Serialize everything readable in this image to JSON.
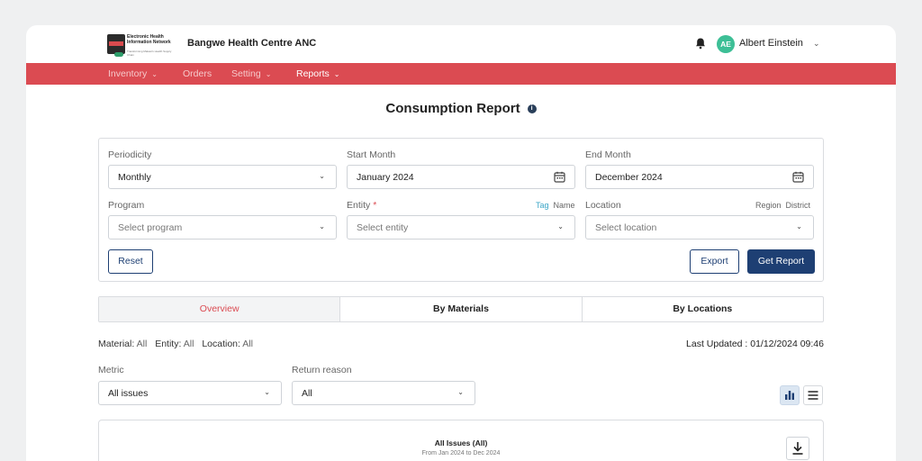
{
  "header": {
    "logo_text": "Electronic Health Information Network",
    "logo_tagline": "Transforming Malawi's Health Supply Chain",
    "facility_name": "Bangwe Health Centre ANC",
    "user_initials": "AE",
    "user_name": "Albert Einstein"
  },
  "nav": {
    "items": [
      {
        "label": "Inventory",
        "has_menu": true
      },
      {
        "label": "Orders",
        "has_menu": false
      },
      {
        "label": "Setting",
        "has_menu": true
      },
      {
        "label": "Reports",
        "has_menu": true,
        "active": true
      }
    ]
  },
  "page": {
    "title": "Consumption Report"
  },
  "filters": {
    "periodicity": {
      "label": "Periodicity",
      "value": "Monthly"
    },
    "start_month": {
      "label": "Start Month",
      "value": "January 2024"
    },
    "end_month": {
      "label": "End Month",
      "value": "December 2024"
    },
    "program": {
      "label": "Program",
      "placeholder": "Select program"
    },
    "entity": {
      "label": "Entity",
      "required_mark": "*",
      "placeholder": "Select entity",
      "toggle_tag": "Tag",
      "toggle_name": "Name"
    },
    "location": {
      "label": "Location",
      "placeholder": "Select location",
      "toggle_region": "Region",
      "toggle_district": "District"
    },
    "reset_label": "Reset",
    "export_label": "Export",
    "get_report_label": "Get Report"
  },
  "tabs": [
    {
      "label": "Overview",
      "active": true
    },
    {
      "label": "By Materials",
      "active": false
    },
    {
      "label": "By Locations",
      "active": false
    }
  ],
  "summary": {
    "material_label": "Material:",
    "material_value": "All",
    "entity_label": "Entity:",
    "entity_value": "All",
    "location_label": "Location:",
    "location_value": "All",
    "last_updated": "Last Updated : 01/12/2024 09:46"
  },
  "controls": {
    "metric": {
      "label": "Metric",
      "value": "All issues"
    },
    "return_reason": {
      "label": "Return reason",
      "value": "All"
    }
  },
  "chart_card": {
    "title": "All Issues (All)",
    "subtitle": "From Jan 2024 to Dec 2024"
  },
  "colors": {
    "brand_red": "#db4b52",
    "primary_navy": "#1e3f73",
    "avatar_green": "#3dbf96",
    "tag_toggle": "#3aa5c7"
  }
}
